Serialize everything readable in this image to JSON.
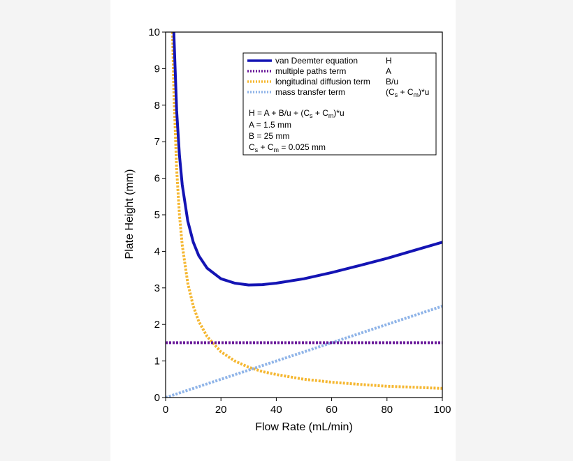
{
  "chart_data": {
    "type": "line",
    "title": "",
    "xlabel": "Flow Rate (mL/min)",
    "ylabel": "Plate Height (mm)",
    "xlim": [
      0,
      100
    ],
    "ylim": [
      0,
      10
    ],
    "xticks": [
      "0",
      "20",
      "40",
      "60",
      "80",
      "100"
    ],
    "yticks": [
      "0",
      "1",
      "2",
      "3",
      "4",
      "5",
      "6",
      "7",
      "8",
      "9",
      "10"
    ],
    "grid": false,
    "legend_position": "top-right",
    "params": {
      "A": 1.5,
      "B": 25,
      "Cs_plus_Cm": 0.025
    },
    "series": [
      {
        "name": "van Deemter equation",
        "symbol": "H",
        "color": "#1414b4",
        "style": "solid",
        "x": [
          2.7,
          3,
          4,
          5,
          6,
          8,
          10,
          12,
          15,
          20,
          25,
          30,
          35,
          40,
          50,
          60,
          70,
          80,
          90,
          100
        ],
        "y": [
          10.83,
          9.91,
          7.85,
          6.63,
          5.82,
          4.83,
          4.25,
          3.88,
          3.54,
          3.25,
          3.13,
          3.08,
          3.09,
          3.13,
          3.25,
          3.42,
          3.61,
          3.81,
          4.03,
          4.25
        ]
      },
      {
        "name": "multiple paths term",
        "symbol": "A",
        "color": "#6a1a9a",
        "style": "dotted",
        "x": [
          0,
          100
        ],
        "y": [
          1.5,
          1.5
        ]
      },
      {
        "name": "longitudinal diffusion term",
        "symbol": "B/u",
        "color": "#f5b731",
        "style": "dotted",
        "x": [
          2.5,
          3,
          4,
          5,
          6,
          8,
          10,
          12,
          15,
          20,
          25,
          30,
          35,
          40,
          50,
          60,
          70,
          80,
          90,
          100
        ],
        "y": [
          10,
          8.33,
          6.25,
          5,
          4.17,
          3.13,
          2.5,
          2.08,
          1.67,
          1.25,
          1.0,
          0.83,
          0.71,
          0.63,
          0.5,
          0.42,
          0.36,
          0.31,
          0.28,
          0.25
        ]
      },
      {
        "name": "mass transfer term",
        "symbol": "(Cs + Cm)*u",
        "color": "#8fb4e8",
        "style": "dotted",
        "x": [
          0,
          100
        ],
        "y": [
          0,
          2.5
        ]
      }
    ]
  },
  "legend_symbols": [
    "H",
    "A",
    "B/u"
  ],
  "mass_transfer_symbol": {
    "open": "(C",
    "s": "s",
    "plus": " + C",
    "m": "m",
    "close": ")*u"
  },
  "equation": {
    "prefix": "H =  A + B/u + (C",
    "s": "s",
    "plus": " + C",
    "m": "m",
    "suffix": ")*u"
  },
  "param_lines": [
    "A = 1.5 mm",
    "B = 25 mm"
  ],
  "sum_line": {
    "c": "C",
    "s": "s",
    "mid": " + C",
    "m": "m",
    "value": " = 0.025 mm"
  }
}
